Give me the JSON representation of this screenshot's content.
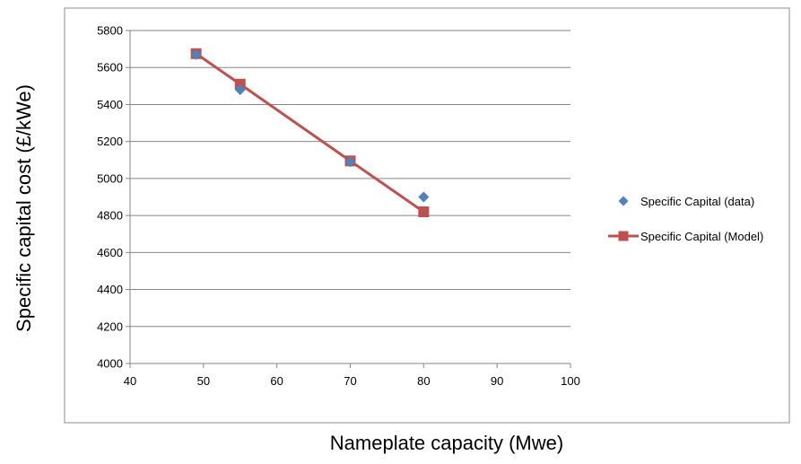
{
  "chart_data": {
    "type": "line",
    "title": "",
    "xlabel": "Nameplate capacity (Mwe)",
    "ylabel": "Specific capital cost (£/kWe)",
    "xlim": [
      40,
      100
    ],
    "ylim": [
      4000,
      5800
    ],
    "xticks": [
      40,
      50,
      60,
      70,
      80,
      90,
      100
    ],
    "yticks": [
      4000,
      4200,
      4400,
      4600,
      4800,
      5000,
      5200,
      5400,
      5600,
      5800
    ],
    "grid": "horizontal",
    "legend_position": "right",
    "series": [
      {
        "name": "Specific Capital (data)",
        "style": "scatter",
        "marker": "diamond",
        "color": "#4F81BD",
        "x": [
          49,
          55,
          70,
          80
        ],
        "y": [
          5670,
          5480,
          5090,
          4900
        ]
      },
      {
        "name": "Specific Capital (Model)",
        "style": "line",
        "marker": "square",
        "color": "#C0504D",
        "x": [
          49,
          55,
          70,
          80
        ],
        "y": [
          5675,
          5510,
          5095,
          4820
        ]
      }
    ]
  }
}
